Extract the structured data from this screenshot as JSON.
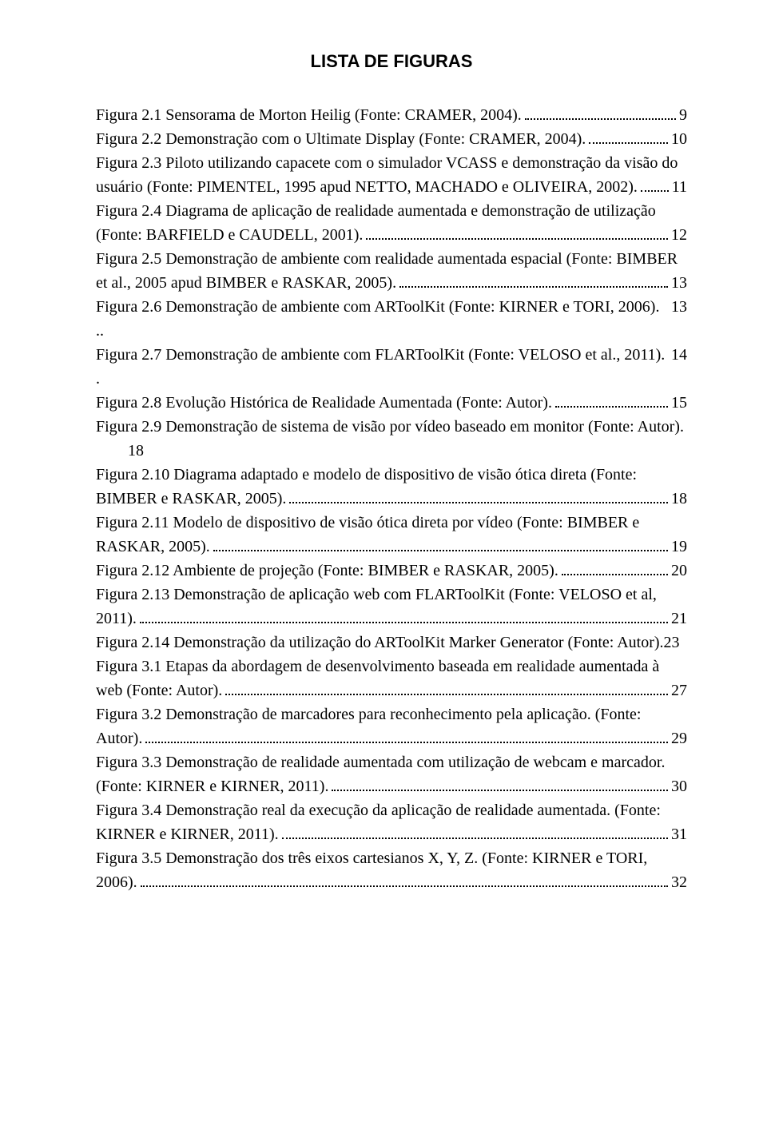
{
  "title": "LISTA DE FIGURAS",
  "entries": [
    {
      "lines": [
        "Figura 2.1 Sensorama de Morton Heilig (Fonte: CRAMER, 2004)."
      ],
      "page": "9"
    },
    {
      "lines": [
        "Figura 2.2 Demonstração com o Ultimate Display (Fonte: CRAMER, 2004)."
      ],
      "page": "10"
    },
    {
      "lines": [
        "Figura 2.3 Piloto utilizando capacete com o simulador VCASS e demonstração da visão do",
        "usuário (Fonte: PIMENTEL, 1995 apud NETTO, MACHADO e OLIVEIRA, 2002)."
      ],
      "page": "11"
    },
    {
      "lines": [
        "Figura 2.4 Diagrama de aplicação de realidade aumentada e demonstração de utilização",
        "(Fonte: BARFIELD e CAUDELL, 2001)."
      ],
      "page": "12"
    },
    {
      "lines": [
        "Figura 2.5 Demonstração de ambiente com realidade aumentada espacial (Fonte: BIMBER",
        "et al., 2005 apud BIMBER e RASKAR, 2005)."
      ],
      "page": "13"
    },
    {
      "lines": [
        "Figura 2.6 Demonstração de ambiente com ARToolKit (Fonte: KIRNER e TORI, 2006). .."
      ],
      "page": "13",
      "nodots": true
    },
    {
      "lines": [
        "Figura 2.7 Demonstração de ambiente com FLARToolKit (Fonte: VELOSO et al., 2011). ."
      ],
      "page": "14",
      "nodots": true
    },
    {
      "lines": [
        "Figura 2.8 Evolução Histórica de Realidade Aumentada (Fonte: Autor)."
      ],
      "page": "15"
    },
    {
      "lines": [
        "Figura 2.9 Demonstração de sistema de visão por vídeo baseado em monitor (Fonte: Autor).",
        "18"
      ],
      "page": "",
      "nodotslast": true,
      "indentlast": true
    },
    {
      "lines": [
        "Figura 2.10 Diagrama adaptado e modelo de dispositivo de visão ótica direta (Fonte:",
        "BIMBER e RASKAR, 2005)."
      ],
      "page": "18"
    },
    {
      "lines": [
        "Figura 2.11 Modelo de dispositivo de visão ótica direta por vídeo (Fonte: BIMBER e",
        "RASKAR, 2005)."
      ],
      "page": "19"
    },
    {
      "lines": [
        "Figura 2.12 Ambiente de projeção (Fonte: BIMBER e RASKAR, 2005)."
      ],
      "page": "20"
    },
    {
      "lines": [
        "Figura 2.13 Demonstração de aplicação web com FLARToolKit (Fonte: VELOSO et al,",
        "2011)."
      ],
      "page": "21"
    },
    {
      "lines": [
        "Figura 2.14 Demonstração da utilização do ARToolKit Marker Generator (Fonte: Autor). "
      ],
      "page": "23",
      "nodots": true
    },
    {
      "lines": [
        "Figura 3.1 Etapas da abordagem de desenvolvimento baseada em realidade aumentada à",
        "web (Fonte: Autor)."
      ],
      "page": "27"
    },
    {
      "lines": [
        "Figura 3.2 Demonstração de marcadores para reconhecimento pela aplicação. (Fonte:",
        "Autor)."
      ],
      "page": "29"
    },
    {
      "lines": [
        "Figura 3.3 Demonstração de realidade aumentada com utilização de webcam e marcador.",
        "(Fonte: KIRNER e KIRNER, 2011)."
      ],
      "page": "30"
    },
    {
      "lines": [
        "Figura 3.4 Demonstração real da execução da aplicação de realidade aumentada. (Fonte:",
        "KIRNER e KIRNER, 2011)."
      ],
      "page": "31"
    },
    {
      "lines": [
        "Figura 3.5 Demonstração dos três eixos cartesianos X, Y, Z. (Fonte: KIRNER e TORI,",
        "2006)."
      ],
      "page": "32"
    }
  ]
}
